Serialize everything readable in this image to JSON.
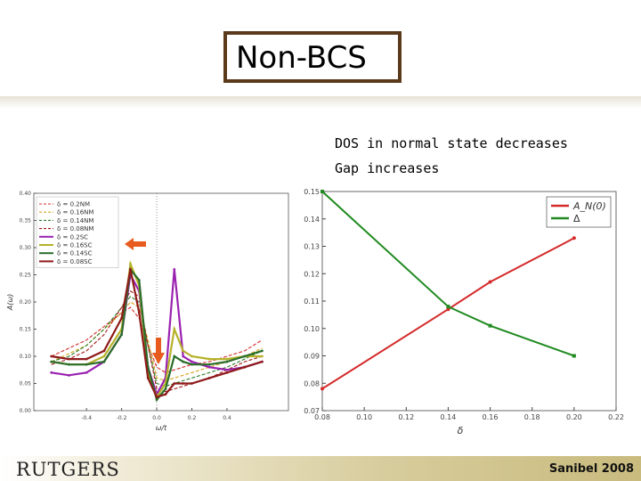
{
  "slide": {
    "title": "Non-BCS",
    "note_line1": "DOS in normal state decreases",
    "note_line2": "Gap increases",
    "logo_text": "RUTGERS",
    "footer_right": "Sanibel 2008"
  },
  "colors": {
    "title_border": "#5b3a1c",
    "red": "#d42a2a",
    "green": "#1f8a1f",
    "orange_arrow": "#e85b1e",
    "purple": "#9a22b0",
    "olive": "#b6b22a",
    "dark_green": "#2a6d2a",
    "dark_red": "#8e1a1a"
  },
  "chart_data": [
    {
      "type": "line",
      "xlabel": "ω/t",
      "ylabel": "A(ω)",
      "xlim": [
        -0.7,
        0.75
      ],
      "ylim": [
        0.0,
        0.4
      ],
      "x_ticks": [
        -0.4,
        -0.2,
        0.0,
        0.2,
        0.4
      ],
      "x_tick_labels": [
        "-0.4",
        "-0.2",
        "0.0",
        "0.2",
        "0.4"
      ],
      "y_ticks": [
        0.0,
        0.05,
        0.1,
        0.15,
        0.2,
        0.25,
        0.3,
        0.35,
        0.4
      ],
      "y_tick_labels": [
        "0.00",
        "0.05",
        "0.10",
        "0.15",
        "0.20",
        "0.25",
        "0.30",
        "0.35",
        "0.40"
      ],
      "grid": false,
      "legend_position": "top-left",
      "vertical_line_x": 0.0,
      "x": [
        -0.6,
        -0.5,
        -0.4,
        -0.3,
        -0.2,
        -0.15,
        -0.1,
        -0.05,
        0.0,
        0.05,
        0.1,
        0.15,
        0.2,
        0.3,
        0.4,
        0.5,
        0.6
      ],
      "series": [
        {
          "name": "δ = 0.2NM",
          "color": "#d42a2a",
          "dashed": true,
          "values": [
            0.1,
            0.115,
            0.13,
            0.155,
            0.18,
            0.19,
            0.17,
            0.12,
            0.08,
            0.07,
            0.075,
            0.08,
            0.085,
            0.09,
            0.1,
            0.11,
            0.13
          ]
        },
        {
          "name": "δ = 0.16NM",
          "color": "#d4a51d",
          "dashed": true,
          "values": [
            0.09,
            0.105,
            0.12,
            0.15,
            0.18,
            0.2,
            0.19,
            0.13,
            0.06,
            0.055,
            0.06,
            0.065,
            0.07,
            0.08,
            0.09,
            0.1,
            0.115
          ]
        },
        {
          "name": "δ = 0.14NM",
          "color": "#2a7d2a",
          "dashed": true,
          "values": [
            0.09,
            0.1,
            0.12,
            0.15,
            0.19,
            0.21,
            0.2,
            0.12,
            0.05,
            0.045,
            0.05,
            0.055,
            0.06,
            0.07,
            0.08,
            0.095,
            0.11
          ]
        },
        {
          "name": "δ = 0.08NM",
          "color": "#a11818",
          "dashed": true,
          "values": [
            0.085,
            0.095,
            0.11,
            0.14,
            0.19,
            0.22,
            0.21,
            0.12,
            0.04,
            0.035,
            0.04,
            0.045,
            0.05,
            0.06,
            0.075,
            0.09,
            0.1
          ]
        },
        {
          "name": "δ = 0.2SC",
          "color": "#9a22b0",
          "dashed": false,
          "values": [
            0.07,
            0.065,
            0.07,
            0.09,
            0.14,
            0.25,
            0.22,
            0.08,
            0.03,
            0.06,
            0.26,
            0.1,
            0.09,
            0.08,
            0.075,
            0.08,
            0.09
          ]
        },
        {
          "name": "δ = 0.16SC",
          "color": "#b6b22a",
          "dashed": false,
          "values": [
            0.09,
            0.085,
            0.085,
            0.1,
            0.15,
            0.27,
            0.23,
            0.07,
            0.025,
            0.05,
            0.15,
            0.11,
            0.1,
            0.095,
            0.095,
            0.1,
            0.1
          ]
        },
        {
          "name": "δ = 0.14SC",
          "color": "#2a6d2a",
          "dashed": false,
          "values": [
            0.09,
            0.085,
            0.085,
            0.09,
            0.14,
            0.26,
            0.24,
            0.08,
            0.02,
            0.04,
            0.1,
            0.09,
            0.085,
            0.085,
            0.09,
            0.1,
            0.11
          ]
        },
        {
          "name": "δ = 0.08SC",
          "color": "#8e1a1a",
          "dashed": false,
          "values": [
            0.1,
            0.095,
            0.095,
            0.11,
            0.17,
            0.26,
            0.18,
            0.06,
            0.025,
            0.03,
            0.05,
            0.05,
            0.05,
            0.06,
            0.07,
            0.08,
            0.09
          ]
        }
      ]
    },
    {
      "type": "line",
      "xlabel": "δ",
      "ylabel": "",
      "xlim": [
        0.08,
        0.22
      ],
      "ylim": [
        0.07,
        0.15
      ],
      "x_ticks": [
        0.08,
        0.1,
        0.12,
        0.14,
        0.16,
        0.18,
        0.2,
        0.22
      ],
      "x_tick_labels": [
        "0.08",
        "0.10",
        "0.12",
        "0.14",
        "0.16",
        "0.18",
        "0.20",
        "0.22"
      ],
      "y_ticks": [
        0.07,
        0.08,
        0.09,
        0.1,
        0.11,
        0.12,
        0.13,
        0.14,
        0.15
      ],
      "y_tick_labels": [
        "0.07",
        "0.08",
        "0.09",
        "0.10",
        "0.11",
        "0.12",
        "0.13",
        "0.14",
        "0.15"
      ],
      "grid": false,
      "legend_position": "top-right",
      "series": [
        {
          "name": "A_N(0)",
          "color": "#d42a2a",
          "x": [
            0.08,
            0.14,
            0.16,
            0.2
          ],
          "values": [
            0.078,
            0.107,
            0.117,
            0.133
          ]
        },
        {
          "name": "Δ",
          "color": "#1f8a1f",
          "x": [
            0.08,
            0.14,
            0.16,
            0.2
          ],
          "values": [
            0.15,
            0.108,
            0.101,
            0.09
          ]
        }
      ]
    }
  ]
}
